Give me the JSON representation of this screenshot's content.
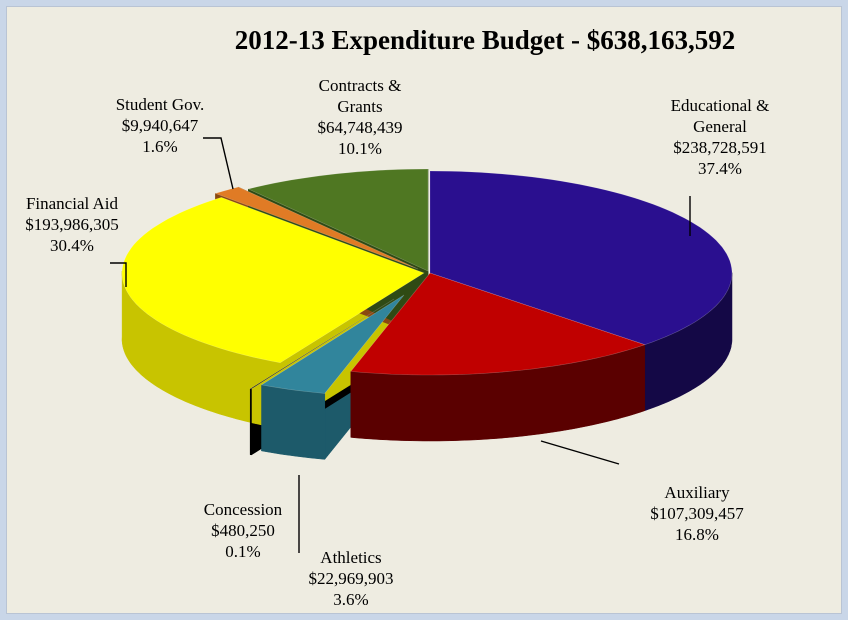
{
  "chart_data": {
    "type": "pie",
    "title": "2012-13 Expenditure Budget - $638,163,592",
    "legend": "none",
    "slices": [
      {
        "key": "educational",
        "label_lines": [
          "Educational &",
          "General"
        ],
        "amount": "$238,728,591",
        "percent_text": "37.4%",
        "value": 238728591,
        "color": "#2a0f8f",
        "side_color": "#140846"
      },
      {
        "key": "auxiliary",
        "label_lines": [
          "Auxiliary"
        ],
        "amount": "$107,309,457",
        "percent_text": "16.8%",
        "value": 107309457,
        "color": "#c00000",
        "side_color": "#5a0000"
      },
      {
        "key": "athletics",
        "label_lines": [
          "Athletics"
        ],
        "amount": "$22,969,903",
        "percent_text": "3.6%",
        "value": 22969903,
        "color": "#31859c",
        "side_color": "#1d5a6a"
      },
      {
        "key": "concession",
        "label_lines": [
          "Concession"
        ],
        "amount": "$480,250",
        "percent_text": "0.1%",
        "value": 480250,
        "color": "#111111",
        "side_color": "#000000"
      },
      {
        "key": "financial-aid",
        "label_lines": [
          "Financial Aid"
        ],
        "amount": "$193,986,305",
        "percent_text": "30.4%",
        "value": 193986305,
        "color": "#ffff00",
        "side_color": "#c8c400"
      },
      {
        "key": "student-gov",
        "label_lines": [
          "Student Gov."
        ],
        "amount": "$9,940,647",
        "percent_text": "1.6%",
        "value": 9940647,
        "color": "#e07b25",
        "side_color": "#8a4810"
      },
      {
        "key": "contracts",
        "label_lines": [
          "Contracts &",
          "Grants"
        ],
        "amount": "$64,748,439",
        "percent_text": "10.1%",
        "value": 64748439,
        "color": "#4f7722",
        "side_color": "#2f4a14"
      }
    ]
  }
}
